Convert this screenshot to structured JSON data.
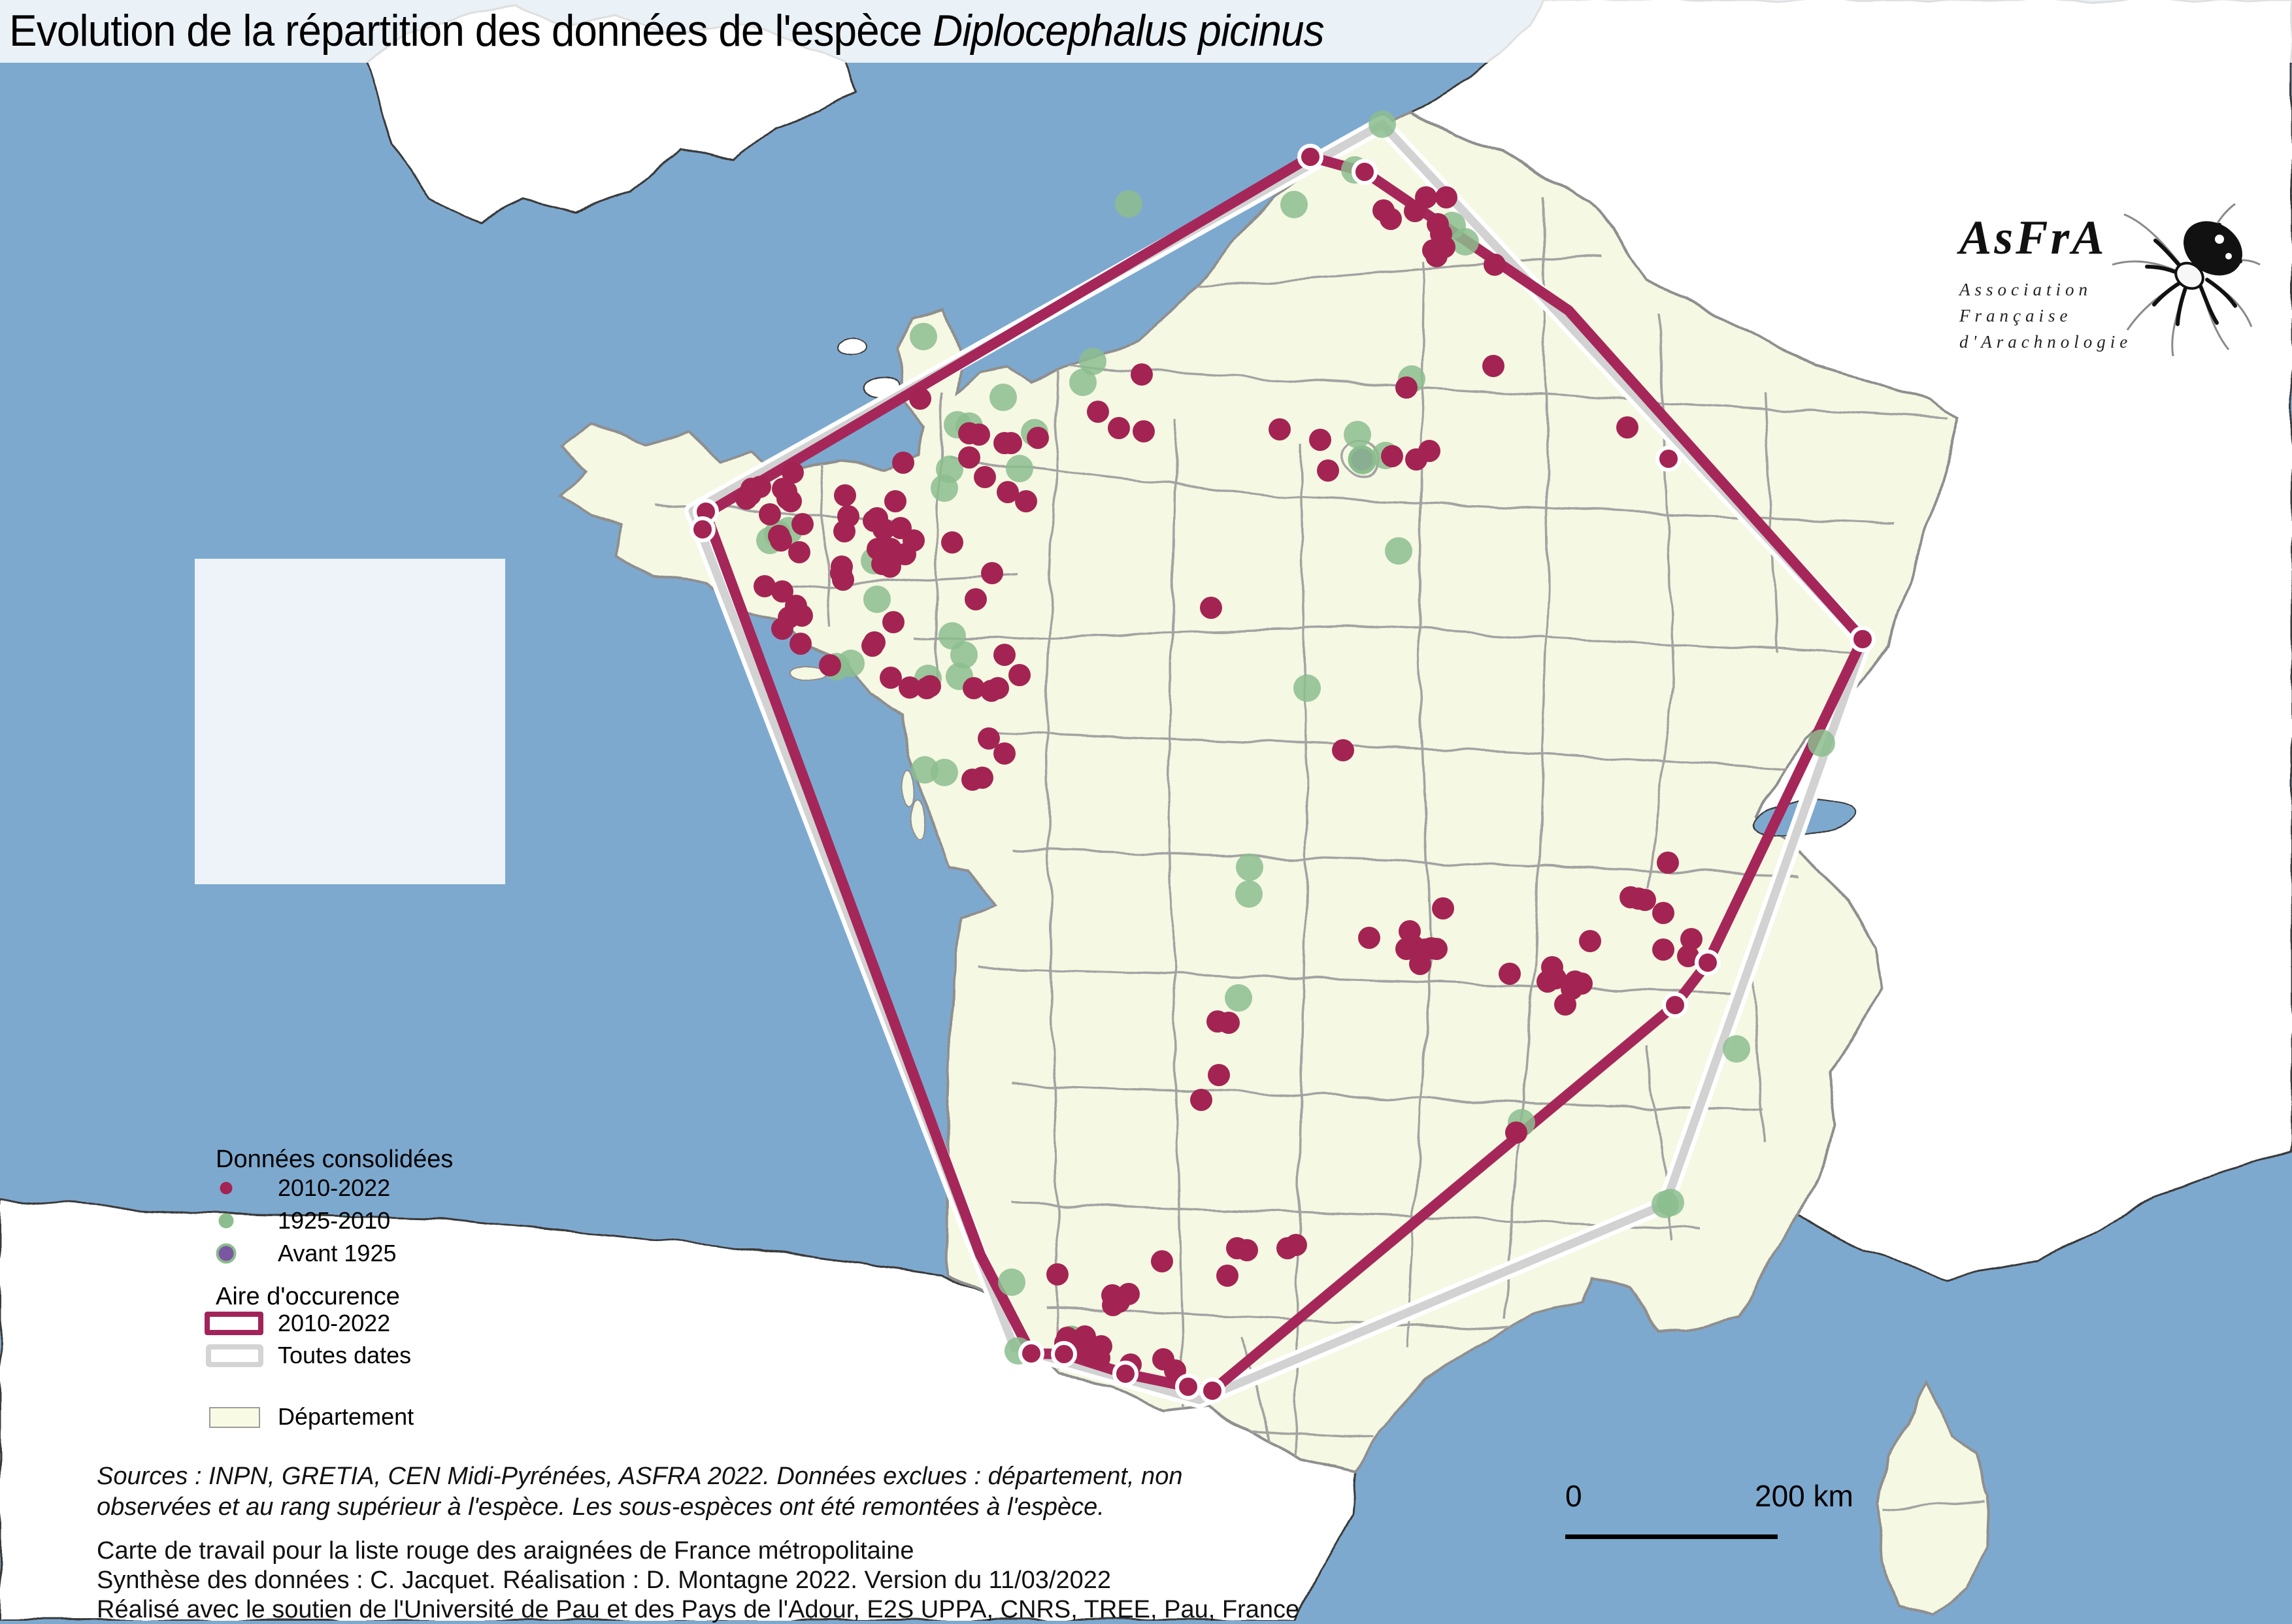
{
  "title": {
    "prefix": "Evolution de la répartition des données de l'espèce ",
    "species": "Diplocephalus picinus"
  },
  "legend": {
    "points_header": "Données consolidées",
    "points": [
      {
        "label": "2010-2022",
        "color": "#a32453"
      },
      {
        "label": "1925-2010",
        "color": "#8cbd8e"
      },
      {
        "label": "Avant 1925",
        "color": "#7a58a1",
        "outline": "#8cbd8e"
      }
    ],
    "areas_header": "Aire d'occurence",
    "areas": [
      {
        "label": "2010-2022",
        "color": "#a2235a"
      },
      {
        "label": "Toutes dates",
        "color": "#d4d4d4"
      }
    ],
    "department": {
      "label": "Département",
      "fill": "#f8fae3",
      "border": "#9c9c9c"
    }
  },
  "logo": {
    "acronym": "AsFrA",
    "lines": [
      "Association",
      "Française",
      "d'Arachnologie"
    ]
  },
  "scalebar": {
    "start": "0",
    "end": "200 km"
  },
  "notes_italic": [
    "Sources : INPN, GRETIA, CEN Midi-Pyrénées, ASFRA 2022. Données exclues : département, non",
    "observées et au rang supérieur à l'espèce. Les sous-espèces ont été remontées à l'espèce."
  ],
  "notes_plain": [
    "Carte de travail pour la liste rouge des araignées de France métropolitaine",
    "Synthèse des données : C. Jacquet. Réalisation : D. Montagne 2022. Version du 11/03/2022",
    "Réalisé avec le soutien de l'Université de Pau et des Pays de l'Adour, E2S UPPA, CNRS, TREE, Pau, France"
  ],
  "map": {
    "colors": {
      "sea": "#7ea9cf",
      "france_fill": "#f5f8e2",
      "neighbor_fill": "#ffffff",
      "department_border": "#a3a3a3",
      "foreign_border": "#3a3a3a",
      "occurrence_2010_2022": "#a5275a",
      "occurrence_all_dates": "#d2d2d2",
      "dot_2010_2022": "#a32453",
      "dot_1925_2010": "#8cbd8e",
      "dot_avant_1925": "#7a58a1"
    },
    "occurrence_2010_2022": [
      [
        1080,
        786
      ],
      [
        2005,
        240
      ],
      [
        2088,
        263
      ],
      [
        2400,
        475
      ],
      [
        2850,
        978
      ],
      [
        2613,
        1473
      ],
      [
        2563,
        1538
      ],
      [
        1855,
        2128
      ],
      [
        1818,
        2122
      ],
      [
        1722,
        2102
      ],
      [
        1628,
        2072
      ],
      [
        1578,
        2071
      ],
      [
        1500,
        1920
      ]
    ],
    "occurrence_all_dates": [
      [
        1060,
        782
      ],
      [
        2115,
        190
      ],
      [
        2852,
        982
      ],
      [
        2548,
        1843
      ],
      [
        1835,
        2142
      ],
      [
        1552,
        2062
      ]
    ],
    "vertex_rings": [
      [
        1080,
        783
      ],
      [
        1075,
        810
      ],
      [
        2005,
        240
      ],
      [
        2088,
        263
      ],
      [
        2553,
        702
      ],
      [
        2850,
        978
      ],
      [
        2613,
        1473
      ],
      [
        2563,
        1538
      ],
      [
        1855,
        2128
      ],
      [
        1818,
        2122
      ],
      [
        1722,
        2102
      ],
      [
        1628,
        2072
      ],
      [
        1578,
        2071
      ]
    ],
    "dots_2010_2022": [
      [
        2117,
        322
      ],
      [
        2128,
        335
      ],
      [
        2165,
        323
      ],
      [
        2182,
        302
      ],
      [
        2213,
        302
      ],
      [
        2200,
        343
      ],
      [
        2205,
        358
      ],
      [
        2210,
        378
      ],
      [
        2193,
        383
      ],
      [
        2198,
        392
      ],
      [
        2287,
        405
      ],
      [
        2285,
        560
      ],
      [
        2490,
        654
      ],
      [
        1408,
        610
      ],
      [
        1747,
        573
      ],
      [
        1680,
        630
      ],
      [
        1498,
        665
      ],
      [
        1547,
        678
      ],
      [
        1588,
        670
      ],
      [
        1712,
        655
      ],
      [
        1750,
        660
      ],
      [
        1958,
        657
      ],
      [
        2020,
        673
      ],
      [
        2032,
        720
      ],
      [
        2130,
        698
      ],
      [
        2167,
        703
      ],
      [
        2187,
        690
      ],
      [
        2152,
        593
      ],
      [
        1483,
        663
      ],
      [
        1483,
        700
      ],
      [
        1507,
        730
      ],
      [
        1537,
        678
      ],
      [
        1542,
        753
      ],
      [
        1570,
        767
      ],
      [
        1382,
        708
      ],
      [
        1378,
        808
      ],
      [
        1370,
        767
      ],
      [
        1213,
        723
      ],
      [
        1163,
        745
      ],
      [
        1150,
        748
      ],
      [
        1148,
        757
      ],
      [
        1142,
        763
      ],
      [
        1198,
        748
      ],
      [
        1203,
        752
      ],
      [
        1205,
        763
      ],
      [
        1210,
        767
      ],
      [
        1178,
        787
      ],
      [
        1228,
        802
      ],
      [
        1192,
        820
      ],
      [
        1195,
        827
      ],
      [
        1223,
        845
      ],
      [
        1293,
        758
      ],
      [
        1298,
        790
      ],
      [
        1292,
        813
      ],
      [
        1288,
        867
      ],
      [
        1287,
        877
      ],
      [
        1290,
        887
      ],
      [
        1342,
        793
      ],
      [
        1337,
        797
      ],
      [
        1352,
        810
      ],
      [
        1343,
        840
      ],
      [
        1352,
        842
      ],
      [
        1363,
        840
      ],
      [
        1370,
        850
      ],
      [
        1385,
        848
      ],
      [
        1360,
        858
      ],
      [
        1350,
        863
      ],
      [
        1362,
        867
      ],
      [
        1398,
        827
      ],
      [
        1457,
        830
      ],
      [
        1170,
        897
      ],
      [
        1197,
        905
      ],
      [
        1218,
        927
      ],
      [
        1227,
        942
      ],
      [
        1207,
        945
      ],
      [
        1197,
        962
      ],
      [
        1225,
        985
      ],
      [
        1270,
        1018
      ],
      [
        1335,
        988
      ],
      [
        1338,
        983
      ],
      [
        1367,
        952
      ],
      [
        1363,
        1037
      ],
      [
        1392,
        1052
      ],
      [
        1418,
        1053
      ],
      [
        1423,
        1050
      ],
      [
        1518,
        877
      ],
      [
        1493,
        917
      ],
      [
        1537,
        1002
      ],
      [
        1560,
        1033
      ],
      [
        1490,
        1053
      ],
      [
        1517,
        1057
      ],
      [
        1527,
        1053
      ],
      [
        1513,
        1130
      ],
      [
        1537,
        1153
      ],
      [
        1488,
        1193
      ],
      [
        1503,
        1190
      ],
      [
        1853,
        930
      ],
      [
        2055,
        1148
      ],
      [
        2095,
        1435
      ],
      [
        2157,
        1425
      ],
      [
        2152,
        1452
      ],
      [
        2163,
        1448
      ],
      [
        2180,
        1453
      ],
      [
        2190,
        1451
      ],
      [
        2198,
        1452
      ],
      [
        2173,
        1475
      ],
      [
        2208,
        1390
      ],
      [
        1863,
        1563
      ],
      [
        1880,
        1565
      ],
      [
        1838,
        1683
      ],
      [
        1865,
        1645
      ],
      [
        2552,
        1320
      ],
      [
        2495,
        1373
      ],
      [
        2507,
        1375
      ],
      [
        2517,
        1377
      ],
      [
        2545,
        1397
      ],
      [
        2433,
        1440
      ],
      [
        2545,
        1453
      ],
      [
        2588,
        1437
      ],
      [
        2583,
        1463
      ],
      [
        2375,
        1480
      ],
      [
        2310,
        1490
      ],
      [
        2380,
        1497
      ],
      [
        2368,
        1502
      ],
      [
        2410,
        1502
      ],
      [
        2420,
        1505
      ],
      [
        2405,
        1513
      ],
      [
        2395,
        1537
      ],
      [
        2320,
        1733
      ],
      [
        1778,
        1930
      ],
      [
        1618,
        1950
      ],
      [
        1893,
        1910
      ],
      [
        1908,
        1913
      ],
      [
        1878,
        1952
      ],
      [
        1702,
        1982
      ],
      [
        1712,
        1992
      ],
      [
        1727,
        1980
      ],
      [
        1703,
        1997
      ],
      [
        1780,
        2080
      ],
      [
        1798,
        2097
      ],
      [
        1970,
        1910
      ],
      [
        1983,
        1905
      ],
      [
        1633,
        2047
      ],
      [
        1630,
        2055
      ],
      [
        1640,
        2057
      ],
      [
        1645,
        2052
      ],
      [
        1660,
        2045
      ],
      [
        1653,
        2062
      ],
      [
        1685,
        2060
      ],
      [
        1670,
        2075
      ],
      [
        1682,
        2078
      ],
      [
        1730,
        2088
      ]
    ],
    "dots_1925_2010": [
      [
        2115,
        190
      ],
      [
        2073,
        260
      ],
      [
        1980,
        313
      ],
      [
        2222,
        345
      ],
      [
        2242,
        370
      ],
      [
        1727,
        312
      ],
      [
        1413,
        515
      ],
      [
        1535,
        608
      ],
      [
        1672,
        553
      ],
      [
        1657,
        585
      ],
      [
        1483,
        652
      ],
      [
        1583,
        662
      ],
      [
        2160,
        580
      ],
      [
        2077,
        665
      ],
      [
        2085,
        705
      ],
      [
        2120,
        697
      ],
      [
        2140,
        843
      ],
      [
        1465,
        650
      ],
      [
        1453,
        718
      ],
      [
        1445,
        747
      ],
      [
        1207,
        812
      ],
      [
        1190,
        817
      ],
      [
        1178,
        827
      ],
      [
        1342,
        917
      ],
      [
        1338,
        858
      ],
      [
        1280,
        1020
      ],
      [
        1302,
        1015
      ],
      [
        1457,
        973
      ],
      [
        1475,
        1002
      ],
      [
        1468,
        1035
      ],
      [
        1560,
        717
      ],
      [
        1420,
        1038
      ],
      [
        1415,
        1178
      ],
      [
        1445,
        1182
      ],
      [
        2000,
        1053
      ],
      [
        1912,
        1327
      ],
      [
        1911,
        1368
      ],
      [
        1895,
        1527
      ],
      [
        1548,
        1962
      ],
      [
        1558,
        2067
      ],
      [
        2328,
        1718
      ],
      [
        2657,
        1605
      ],
      [
        2548,
        1843
      ],
      [
        2556,
        1840
      ],
      [
        2787,
        1137
      ]
    ],
    "dots_avant_1925": [
      [
        1639,
        2050
      ],
      [
        2084,
        703
      ]
    ]
  }
}
